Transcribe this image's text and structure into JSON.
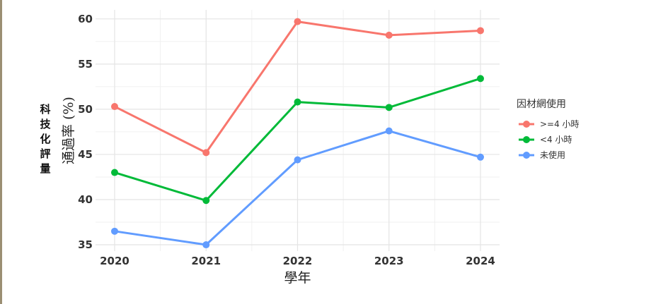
{
  "chart_data": {
    "type": "line",
    "x": [
      2020,
      2021,
      2022,
      2023,
      2024
    ],
    "series": [
      {
        "name": ">=4 小時",
        "color": "#f8766d",
        "values": [
          50.3,
          45.2,
          59.7,
          58.2,
          58.7
        ]
      },
      {
        "name": "<4 小時",
        "color": "#00ba38",
        "values": [
          43.0,
          39.9,
          50.8,
          50.2,
          53.4
        ]
      },
      {
        "name": "未使用",
        "color": "#619cff",
        "values": [
          36.5,
          35.0,
          44.4,
          47.6,
          44.7
        ]
      }
    ],
    "xlabel": "學年",
    "ylabel": "通過率 (%)",
    "side_label": "科技化評量",
    "legend_title": "因材網使用",
    "ylim": [
      34.3,
      61
    ],
    "yticks": [
      35,
      40,
      45,
      50,
      55,
      60
    ],
    "grid": true,
    "legend_position": "right"
  }
}
